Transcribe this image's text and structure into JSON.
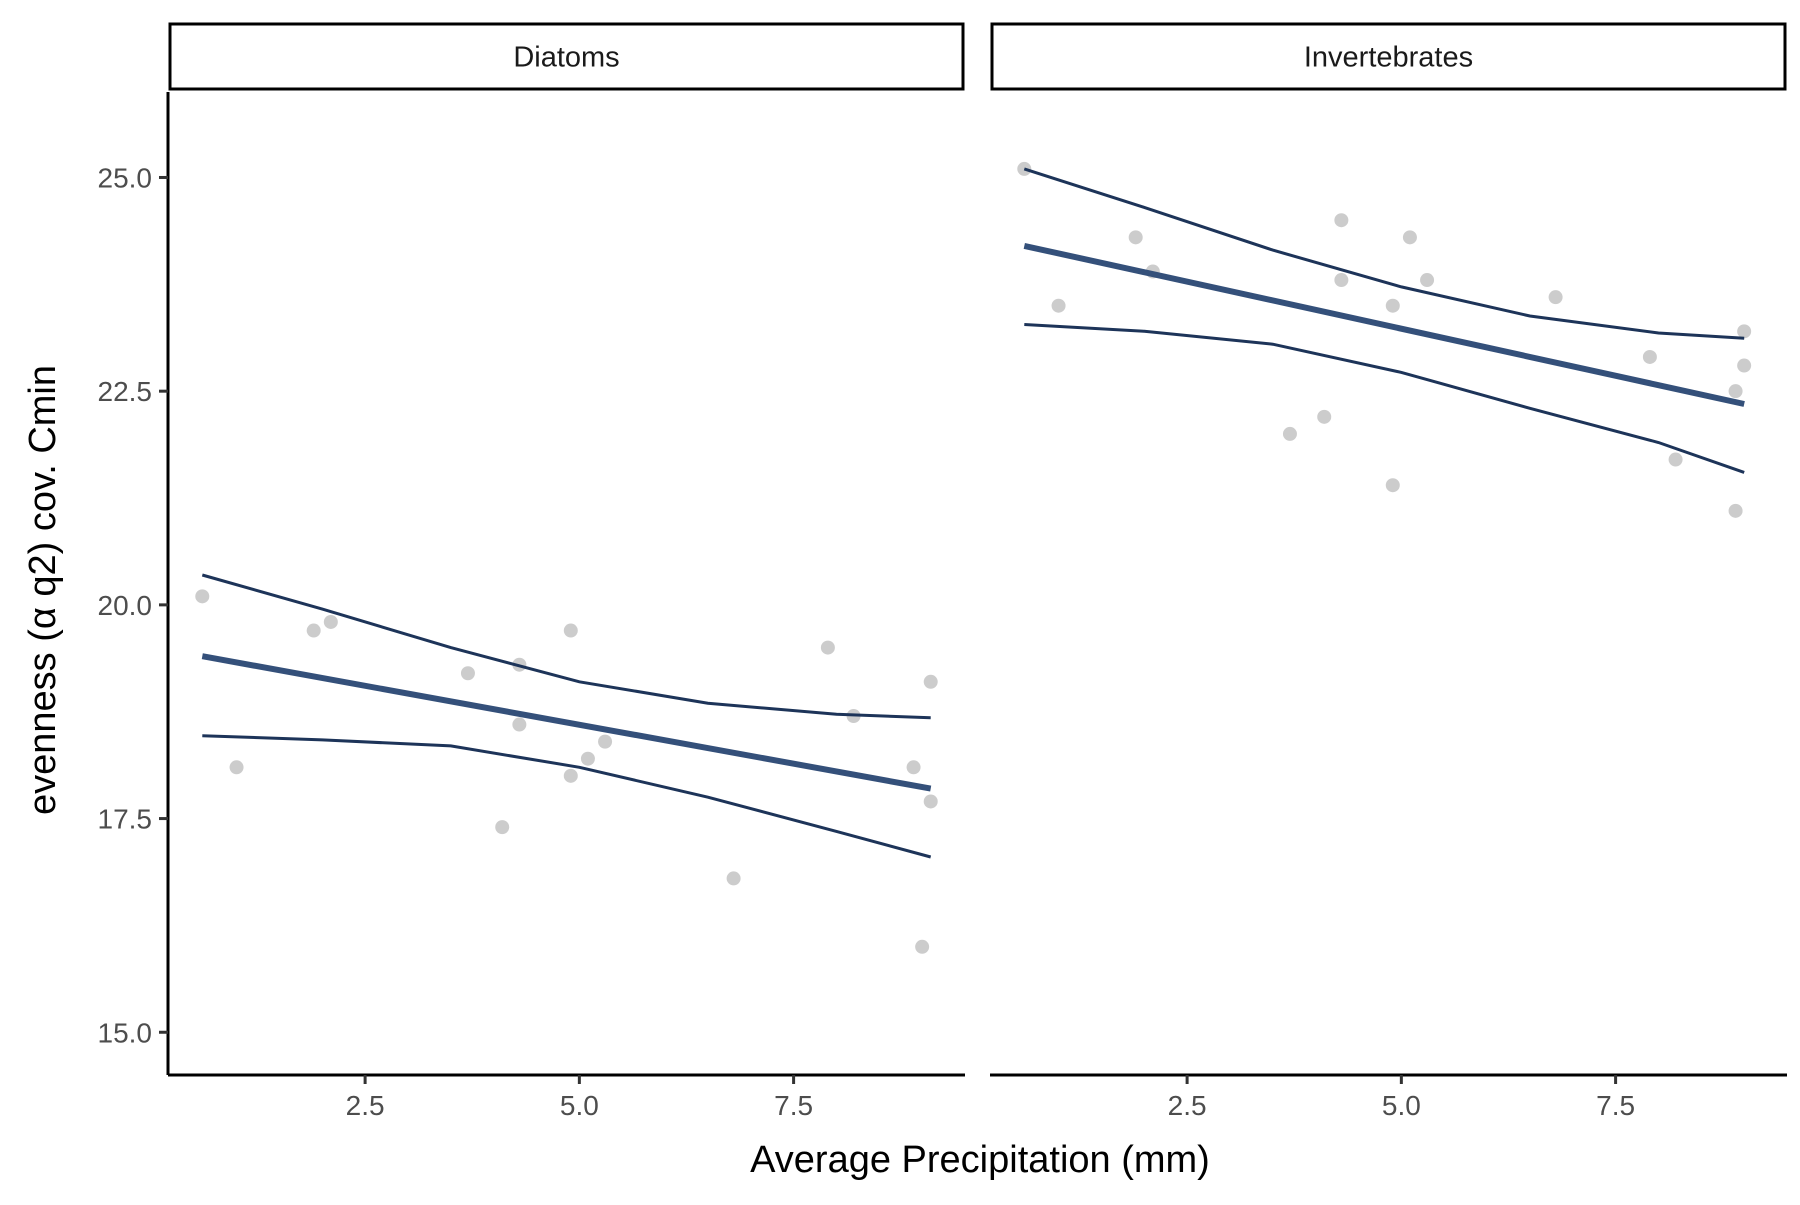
{
  "chart_data": {
    "type": "scatter",
    "xlabel": "Average Precipitation (mm)",
    "ylabel": "evenness (α q2) cov. Cmin",
    "xlim": [
      0.2,
      9.5
    ],
    "ylim": [
      14.5,
      26.0
    ],
    "x_ticks": [
      2.5,
      5.0,
      7.5
    ],
    "x_tick_labels": [
      "2.5",
      "5.0",
      "7.5"
    ],
    "y_ticks": [
      15.0,
      17.5,
      20.0,
      22.5,
      25.0
    ],
    "y_tick_labels": [
      "15.0",
      "17.5",
      "20.0",
      "22.5",
      "25.0"
    ],
    "grid": false,
    "colors": {
      "points": "#cccccc",
      "fit_line": "#34507a",
      "ci_line": "#1d3459",
      "axis": "#000000"
    },
    "panels": [
      {
        "label": "Diatoms",
        "points": [
          {
            "x": 0.6,
            "y": 20.1
          },
          {
            "x": 1.0,
            "y": 18.1
          },
          {
            "x": 1.9,
            "y": 19.7
          },
          {
            "x": 2.1,
            "y": 19.8
          },
          {
            "x": 3.7,
            "y": 19.2
          },
          {
            "x": 4.1,
            "y": 17.4
          },
          {
            "x": 4.3,
            "y": 19.3
          },
          {
            "x": 4.3,
            "y": 18.6
          },
          {
            "x": 4.9,
            "y": 18.0
          },
          {
            "x": 4.9,
            "y": 19.7
          },
          {
            "x": 5.1,
            "y": 18.2
          },
          {
            "x": 5.3,
            "y": 18.4
          },
          {
            "x": 6.8,
            "y": 16.8
          },
          {
            "x": 7.9,
            "y": 19.5
          },
          {
            "x": 8.2,
            "y": 18.7
          },
          {
            "x": 8.9,
            "y": 18.1
          },
          {
            "x": 9.0,
            "y": 16.0
          },
          {
            "x": 9.1,
            "y": 19.1
          },
          {
            "x": 9.1,
            "y": 17.7
          }
        ],
        "fit": [
          {
            "x": 0.6,
            "y": 19.4
          },
          {
            "x": 9.1,
            "y": 17.85
          }
        ],
        "ci_upper": [
          {
            "x": 0.6,
            "y": 20.35
          },
          {
            "x": 2.0,
            "y": 19.95
          },
          {
            "x": 3.5,
            "y": 19.5
          },
          {
            "x": 5.0,
            "y": 19.1
          },
          {
            "x": 6.5,
            "y": 18.85
          },
          {
            "x": 8.0,
            "y": 18.72
          },
          {
            "x": 9.1,
            "y": 18.68
          }
        ],
        "ci_lower": [
          {
            "x": 0.6,
            "y": 18.47
          },
          {
            "x": 2.0,
            "y": 18.42
          },
          {
            "x": 3.5,
            "y": 18.35
          },
          {
            "x": 5.0,
            "y": 18.1
          },
          {
            "x": 6.5,
            "y": 17.75
          },
          {
            "x": 8.0,
            "y": 17.35
          },
          {
            "x": 9.1,
            "y": 17.05
          }
        ]
      },
      {
        "label": "Invertebrates",
        "points": [
          {
            "x": 0.6,
            "y": 25.1
          },
          {
            "x": 1.0,
            "y": 23.5
          },
          {
            "x": 1.9,
            "y": 24.3
          },
          {
            "x": 2.1,
            "y": 23.9
          },
          {
            "x": 3.7,
            "y": 22.0
          },
          {
            "x": 4.1,
            "y": 22.2
          },
          {
            "x": 4.3,
            "y": 24.5
          },
          {
            "x": 4.3,
            "y": 23.8
          },
          {
            "x": 4.9,
            "y": 23.5
          },
          {
            "x": 4.9,
            "y": 21.4
          },
          {
            "x": 5.1,
            "y": 24.3
          },
          {
            "x": 5.3,
            "y": 23.8
          },
          {
            "x": 6.8,
            "y": 23.6
          },
          {
            "x": 7.9,
            "y": 22.9
          },
          {
            "x": 8.2,
            "y": 21.7
          },
          {
            "x": 8.9,
            "y": 22.5
          },
          {
            "x": 8.9,
            "y": 21.1
          },
          {
            "x": 9.0,
            "y": 23.2
          },
          {
            "x": 9.0,
            "y": 22.8
          }
        ],
        "fit": [
          {
            "x": 0.6,
            "y": 24.2
          },
          {
            "x": 9.0,
            "y": 22.35
          }
        ],
        "ci_upper": [
          {
            "x": 0.6,
            "y": 25.1
          },
          {
            "x": 2.0,
            "y": 24.65
          },
          {
            "x": 3.5,
            "y": 24.15
          },
          {
            "x": 5.0,
            "y": 23.72
          },
          {
            "x": 6.5,
            "y": 23.38
          },
          {
            "x": 8.0,
            "y": 23.18
          },
          {
            "x": 9.0,
            "y": 23.12
          }
        ],
        "ci_lower": [
          {
            "x": 0.6,
            "y": 23.28
          },
          {
            "x": 2.0,
            "y": 23.2
          },
          {
            "x": 3.5,
            "y": 23.05
          },
          {
            "x": 5.0,
            "y": 22.72
          },
          {
            "x": 6.5,
            "y": 22.3
          },
          {
            "x": 8.0,
            "y": 21.9
          },
          {
            "x": 9.0,
            "y": 21.55
          }
        ]
      }
    ]
  }
}
